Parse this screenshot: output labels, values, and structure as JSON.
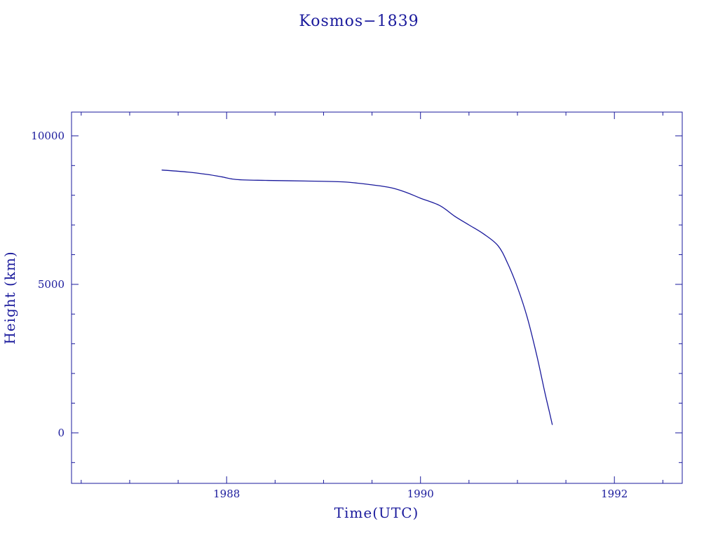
{
  "colors": {
    "ink": "#1a1a9c",
    "background": "#ffffff"
  },
  "chart_data": {
    "type": "line",
    "title": "Kosmos−1839",
    "xlabel": "Time(UTC)",
    "ylabel": "Height (km)",
    "xlim": [
      1986.4,
      1992.7
    ],
    "ylim": [
      -1700,
      10800
    ],
    "grid": false,
    "x_ticks": [
      {
        "value": 1988,
        "label": "1988"
      },
      {
        "value": 1990,
        "label": "1990"
      },
      {
        "value": 1992,
        "label": "1992"
      }
    ],
    "x_minor_step": 0.5,
    "y_ticks": [
      {
        "value": 0,
        "label": "0"
      },
      {
        "value": 5000,
        "label": "5000"
      },
      {
        "value": 10000,
        "label": "10000"
      }
    ],
    "y_minor_step": 1000,
    "series": [
      {
        "x": [
          1987.33,
          1987.6,
          1987.8,
          1987.95,
          1988.1,
          1988.4,
          1988.8,
          1989.2,
          1989.5,
          1989.7,
          1989.85,
          1990.0,
          1990.2,
          1990.35,
          1990.5,
          1990.65,
          1990.8,
          1990.9,
          1991.0,
          1991.1,
          1991.2,
          1991.28,
          1991.33,
          1991.36
        ],
        "y": [
          8850,
          8780,
          8700,
          8620,
          8530,
          8500,
          8480,
          8450,
          8350,
          8250,
          8100,
          7900,
          7650,
          7300,
          7000,
          6700,
          6300,
          5700,
          4900,
          3900,
          2600,
          1400,
          700,
          270
        ]
      }
    ]
  }
}
